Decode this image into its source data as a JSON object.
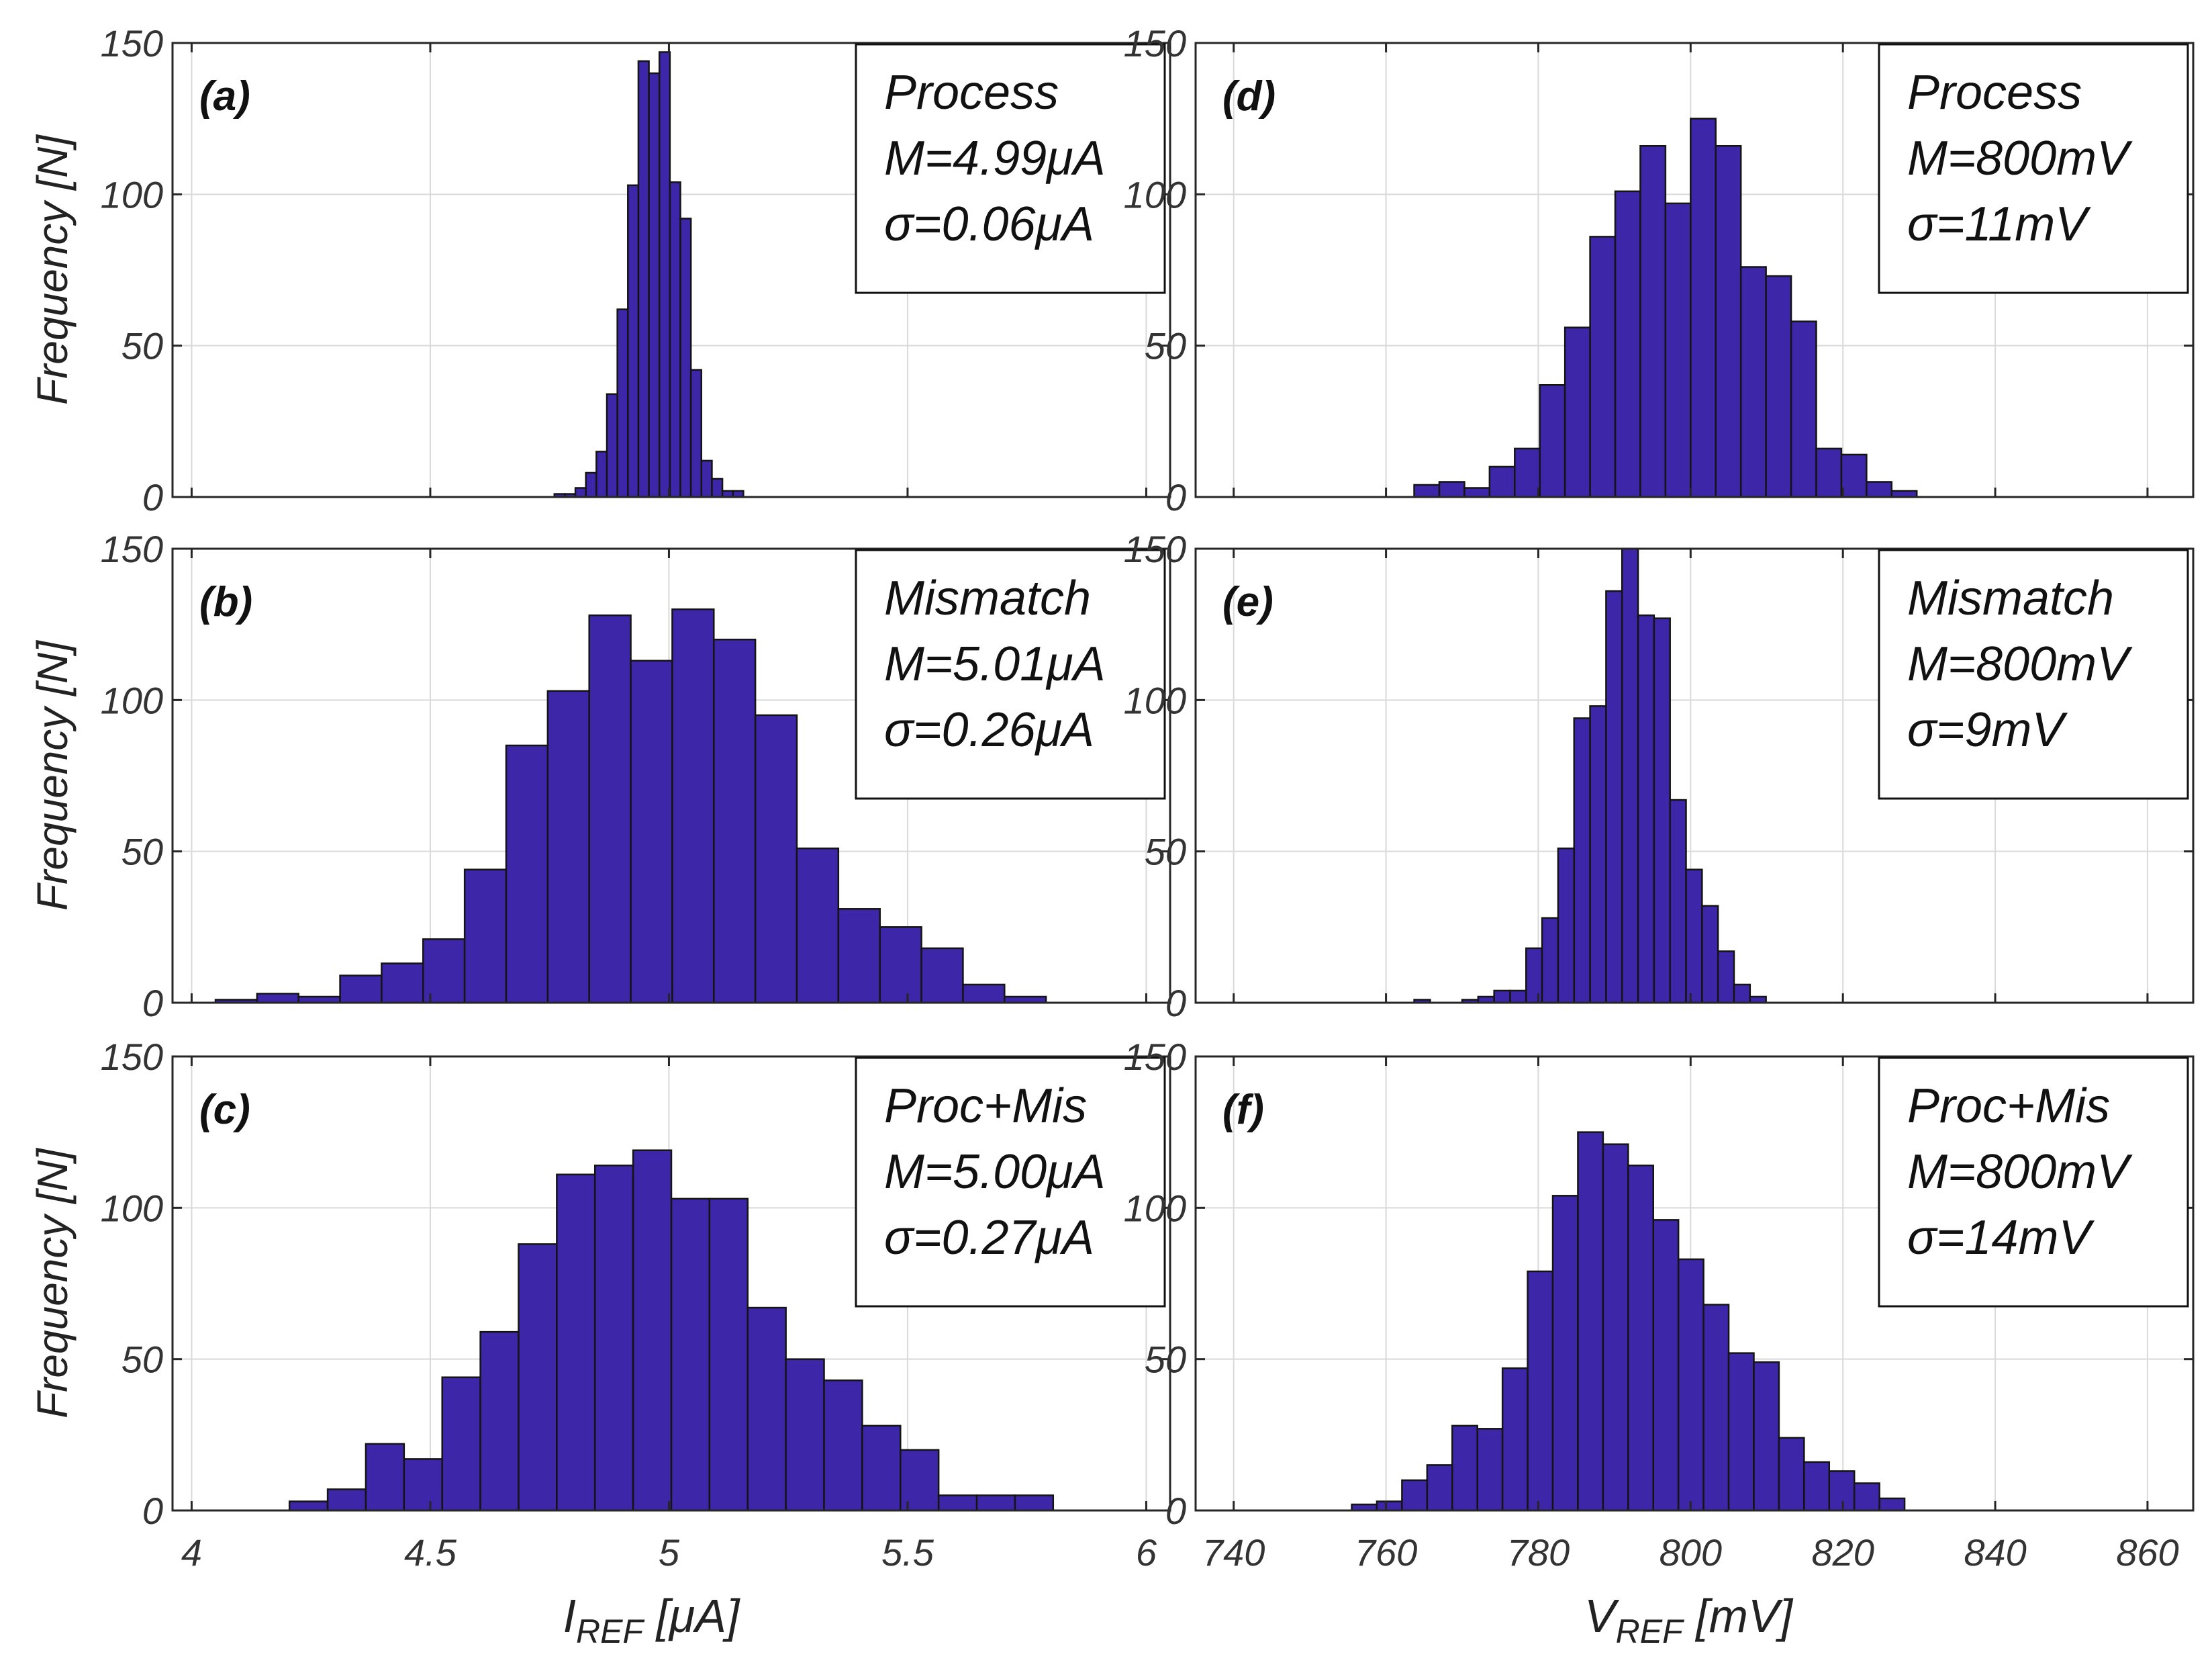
{
  "chart_data": [
    {
      "id": "a",
      "type": "bar",
      "panel_label": "(a)",
      "legend_lines": [
        "Process",
        "M=4.99μA",
        "σ=0.06μA"
      ],
      "xlabel": "I",
      "xlabel_sub": "REF",
      "xlabel_unit": " [μA]",
      "ylabel": "Frequency [N]",
      "xlim": [
        3.96,
        6.05
      ],
      "ylim": [
        0,
        150
      ],
      "xticks": [
        4,
        4.5,
        5,
        5.5,
        6
      ],
      "xtick_labels": [
        "4",
        "4.5",
        "5",
        "5.5",
        "6"
      ],
      "yticks": [
        0,
        50,
        100,
        150
      ],
      "ytick_labels": [
        "0",
        "50",
        "100",
        "150"
      ],
      "show_xticklabels": false,
      "bin_width": 0.022,
      "bin_start": 4.76,
      "values": [
        1,
        1,
        3,
        8,
        15,
        34,
        62,
        103,
        144,
        140,
        147,
        104,
        92,
        42,
        12,
        6,
        2,
        2
      ]
    },
    {
      "id": "b",
      "type": "bar",
      "panel_label": "(b)",
      "legend_lines": [
        "Mismatch",
        "M=5.01μA",
        "σ=0.26μA"
      ],
      "xlabel": "I",
      "xlabel_sub": "REF",
      "xlabel_unit": " [μA]",
      "ylabel": "Frequency [N]",
      "xlim": [
        3.96,
        6.05
      ],
      "ylim": [
        0,
        150
      ],
      "xticks": [
        4,
        4.5,
        5,
        5.5,
        6
      ],
      "xtick_labels": [
        "4",
        "4.5",
        "5",
        "5.5",
        "6"
      ],
      "yticks": [
        0,
        50,
        100,
        150
      ],
      "ytick_labels": [
        "0",
        "50",
        "100",
        "150"
      ],
      "show_xticklabels": false,
      "bin_width": 0.087,
      "bin_start": 4.05,
      "values": [
        1,
        3,
        2,
        9,
        13,
        21,
        44,
        85,
        103,
        128,
        113,
        130,
        120,
        95,
        51,
        31,
        25,
        18,
        6,
        2
      ]
    },
    {
      "id": "c",
      "type": "bar",
      "panel_label": "(c)",
      "legend_lines": [
        "Proc+Mis",
        "M=5.00μA",
        "σ=0.27μA"
      ],
      "xlabel": "I",
      "xlabel_sub": "REF",
      "xlabel_unit": " [μA]",
      "ylabel": "Frequency [N]",
      "xlim": [
        3.96,
        6.05
      ],
      "ylim": [
        0,
        150
      ],
      "xticks": [
        4,
        4.5,
        5,
        5.5,
        6
      ],
      "xtick_labels": [
        "4",
        "4.5",
        "5",
        "5.5",
        "6"
      ],
      "yticks": [
        0,
        50,
        100,
        150
      ],
      "ytick_labels": [
        "0",
        "50",
        "100",
        "150"
      ],
      "show_xticklabels": true,
      "bin_width": 0.08,
      "bin_start": 4.205,
      "values": [
        3,
        7,
        22,
        17,
        44,
        59,
        88,
        111,
        114,
        119,
        103,
        103,
        67,
        50,
        43,
        28,
        20,
        5,
        5,
        5
      ]
    },
    {
      "id": "d",
      "type": "bar",
      "panel_label": "(d)",
      "legend_lines": [
        "Process",
        "M=800mV",
        "σ=11mV"
      ],
      "xlabel": "V",
      "xlabel_sub": "REF",
      "xlabel_unit": " [mV]",
      "ylabel": "",
      "xlim": [
        735,
        866
      ],
      "ylim": [
        0,
        150
      ],
      "xticks": [
        740,
        760,
        780,
        800,
        820,
        840,
        860
      ],
      "xtick_labels": [
        "740",
        "760",
        "780",
        "800",
        "820",
        "840",
        "860"
      ],
      "yticks": [
        0,
        50,
        100,
        150
      ],
      "ytick_labels": [
        "0",
        "50",
        "100",
        "150"
      ],
      "show_xticklabels": false,
      "bin_width": 3.3,
      "bin_start": 763.7,
      "values": [
        4,
        5,
        3,
        10,
        16,
        37,
        56,
        86,
        101,
        116,
        97,
        125,
        116,
        76,
        73,
        58,
        16,
        14,
        5,
        2
      ]
    },
    {
      "id": "e",
      "type": "bar",
      "panel_label": "(e)",
      "legend_lines": [
        "Mismatch",
        "M=800mV",
        "σ=9mV"
      ],
      "xlabel": "V",
      "xlabel_sub": "REF",
      "xlabel_unit": " [mV]",
      "ylabel": "",
      "xlim": [
        735,
        866
      ],
      "ylim": [
        0,
        150
      ],
      "xticks": [
        740,
        760,
        780,
        800,
        820,
        840,
        860
      ],
      "xtick_labels": [
        "740",
        "760",
        "780",
        "800",
        "820",
        "840",
        "860"
      ],
      "yticks": [
        0,
        50,
        100,
        150
      ],
      "ytick_labels": [
        "0",
        "50",
        "100",
        "150"
      ],
      "show_xticklabels": false,
      "bin_width": 2.1,
      "bin_start": 763.7,
      "values": [
        1,
        0,
        0,
        1,
        2,
        4,
        4,
        18,
        28,
        51,
        94,
        98,
        136,
        150,
        128,
        127,
        67,
        44,
        32,
        17,
        6,
        2
      ]
    },
    {
      "id": "f",
      "type": "bar",
      "panel_label": "(f)",
      "legend_lines": [
        "Proc+Mis",
        "M=800mV",
        "σ=14mV"
      ],
      "xlabel": "V",
      "xlabel_sub": "REF",
      "xlabel_unit": " [mV]",
      "ylabel": "",
      "xlim": [
        735,
        866
      ],
      "ylim": [
        0,
        150
      ],
      "xticks": [
        740,
        760,
        780,
        800,
        820,
        840,
        860
      ],
      "xtick_labels": [
        "740",
        "760",
        "780",
        "800",
        "820",
        "840",
        "860"
      ],
      "yticks": [
        0,
        50,
        100,
        150
      ],
      "ytick_labels": [
        "0",
        "50",
        "100",
        "150"
      ],
      "show_xticklabels": true,
      "bin_width": 3.3,
      "bin_start": 755.5,
      "values": [
        2,
        3,
        10,
        15,
        28,
        27,
        47,
        79,
        104,
        125,
        121,
        114,
        96,
        83,
        68,
        52,
        49,
        24,
        16,
        13,
        9,
        4
      ]
    }
  ]
}
